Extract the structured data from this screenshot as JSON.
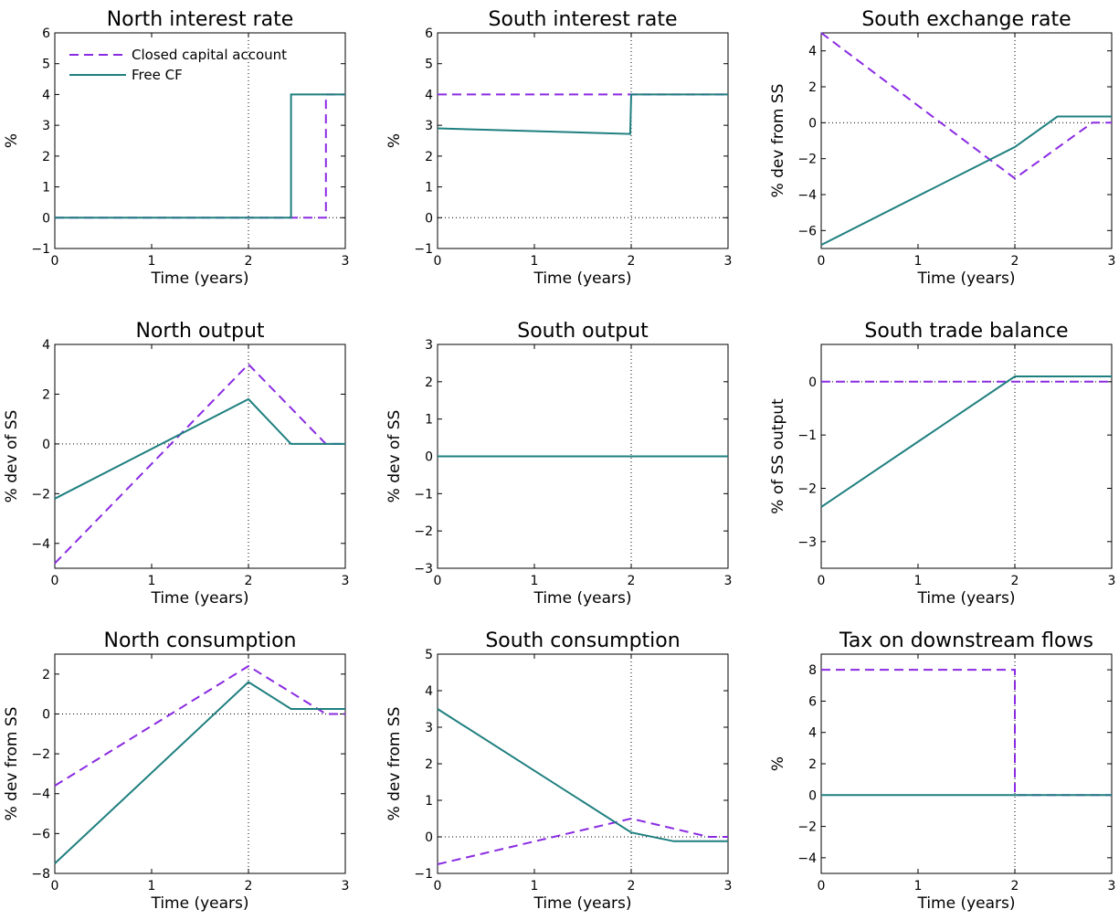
{
  "figure": {
    "legend": {
      "placement": "top-left",
      "entries": [
        "Closed capital account",
        "Free CF"
      ]
    },
    "colors": {
      "closed": "#8a2be2",
      "free": "#1f7f7f"
    }
  },
  "chart_data": [
    {
      "type": "line",
      "title": "North interest rate",
      "xlabel": "Time (years)",
      "ylabel": "%",
      "xlim": [
        0,
        3
      ],
      "ylim": [
        -1,
        6
      ],
      "xticks": [
        0,
        1,
        2,
        3
      ],
      "yticks": [
        -1,
        0,
        1,
        2,
        3,
        4,
        5,
        6
      ],
      "zero_line": true,
      "vline_x": 2,
      "legend": true,
      "series": [
        {
          "name": "Closed capital account",
          "style": "dashed",
          "x": [
            0,
            2.8,
            2.8,
            3
          ],
          "y": [
            0,
            0,
            4,
            4
          ]
        },
        {
          "name": "Free CF",
          "style": "solid",
          "x": [
            0,
            2.44,
            2.44,
            3
          ],
          "y": [
            0,
            0,
            4,
            4
          ]
        }
      ]
    },
    {
      "type": "line",
      "title": "South interest rate",
      "xlabel": "Time (years)",
      "ylabel": "%",
      "xlim": [
        0,
        3
      ],
      "ylim": [
        -1,
        6
      ],
      "xticks": [
        0,
        1,
        2,
        3
      ],
      "yticks": [
        -1,
        0,
        1,
        2,
        3,
        4,
        5,
        6
      ],
      "zero_line": true,
      "vline_x": 2,
      "series": [
        {
          "name": "Closed capital account",
          "style": "dashed",
          "x": [
            0,
            3
          ],
          "y": [
            4,
            4
          ]
        },
        {
          "name": "Free CF",
          "style": "solid",
          "x": [
            0,
            1.99,
            2.0,
            3
          ],
          "y": [
            2.9,
            2.72,
            4,
            4
          ]
        }
      ]
    },
    {
      "type": "line",
      "title": "South exchange rate",
      "xlabel": "Time (years)",
      "ylabel": "% dev from SS",
      "xlim": [
        0,
        3
      ],
      "ylim": [
        -7,
        5
      ],
      "xticks": [
        0,
        1,
        2,
        3
      ],
      "yticks": [
        -6,
        -4,
        -2,
        0,
        2,
        4
      ],
      "zero_line": true,
      "vline_x": 2,
      "series": [
        {
          "name": "Closed capital account",
          "style": "dashed",
          "x": [
            0,
            2,
            2.8,
            3
          ],
          "y": [
            5,
            -3.1,
            0,
            0
          ]
        },
        {
          "name": "Free CF",
          "style": "solid",
          "x": [
            0,
            2,
            2.44,
            3
          ],
          "y": [
            -6.8,
            -1.35,
            0.35,
            0.35
          ]
        }
      ]
    },
    {
      "type": "line",
      "title": "North output",
      "xlabel": "Time (years)",
      "ylabel": "% dev of SS",
      "xlim": [
        0,
        3
      ],
      "ylim": [
        -5,
        4
      ],
      "xticks": [
        0,
        1,
        2,
        3
      ],
      "yticks": [
        -4,
        -2,
        0,
        2,
        4
      ],
      "zero_line": true,
      "vline_x": 2,
      "series": [
        {
          "name": "Closed capital account",
          "style": "dashed",
          "x": [
            0,
            2,
            2.8,
            3
          ],
          "y": [
            -4.8,
            3.2,
            0,
            0
          ]
        },
        {
          "name": "Free CF",
          "style": "solid",
          "x": [
            0,
            2,
            2.44,
            3
          ],
          "y": [
            -2.2,
            1.8,
            0,
            0
          ]
        }
      ]
    },
    {
      "type": "line",
      "title": "South output",
      "xlabel": "Time (years)",
      "ylabel": "% dev of SS",
      "xlim": [
        0,
        3
      ],
      "ylim": [
        -3,
        3
      ],
      "xticks": [
        0,
        1,
        2,
        3
      ],
      "yticks": [
        -3,
        -2,
        -1,
        0,
        1,
        2,
        3
      ],
      "zero_line": true,
      "vline_x": 2,
      "series": [
        {
          "name": "Closed capital account",
          "style": "dashed",
          "x": [
            0,
            3
          ],
          "y": [
            0,
            0
          ]
        },
        {
          "name": "Free CF",
          "style": "solid",
          "x": [
            0,
            3
          ],
          "y": [
            0,
            0
          ]
        }
      ]
    },
    {
      "type": "line",
      "title": "South trade balance",
      "xlabel": "Time (years)",
      "ylabel": "% of SS output",
      "xlim": [
        0,
        3
      ],
      "ylim": [
        -3.5,
        0.7
      ],
      "xticks": [
        0,
        1,
        2,
        3
      ],
      "yticks": [
        -3,
        -2,
        -1,
        0
      ],
      "zero_line": true,
      "vline_x": 2,
      "series": [
        {
          "name": "Closed capital account",
          "style": "dashed",
          "x": [
            0,
            3
          ],
          "y": [
            0,
            0
          ]
        },
        {
          "name": "Free CF",
          "style": "solid",
          "x": [
            0,
            2,
            3
          ],
          "y": [
            -2.35,
            0.1,
            0.1
          ]
        }
      ]
    },
    {
      "type": "line",
      "title": "North consumption",
      "xlabel": "Time (years)",
      "ylabel": "% dev from SS",
      "xlim": [
        0,
        3
      ],
      "ylim": [
        -8,
        3
      ],
      "xticks": [
        0,
        1,
        2,
        3
      ],
      "yticks": [
        -8,
        -6,
        -4,
        -2,
        0,
        2
      ],
      "zero_line": true,
      "vline_x": 2,
      "series": [
        {
          "name": "Closed capital account",
          "style": "dashed",
          "x": [
            0,
            2,
            2.8,
            3
          ],
          "y": [
            -3.6,
            2.4,
            0,
            0
          ]
        },
        {
          "name": "Free CF",
          "style": "solid",
          "x": [
            0,
            2,
            2.44,
            3
          ],
          "y": [
            -7.5,
            1.6,
            0.25,
            0.25
          ]
        }
      ]
    },
    {
      "type": "line",
      "title": "South consumption",
      "xlabel": "Time (years)",
      "ylabel": "% dev from SS",
      "xlim": [
        0,
        3
      ],
      "ylim": [
        -1,
        5
      ],
      "xticks": [
        0,
        1,
        2,
        3
      ],
      "yticks": [
        -1,
        0,
        1,
        2,
        3,
        4,
        5
      ],
      "zero_line": true,
      "vline_x": 2,
      "series": [
        {
          "name": "Closed capital account",
          "style": "dashed",
          "x": [
            0,
            2,
            2.8,
            3
          ],
          "y": [
            -0.75,
            0.5,
            0,
            0
          ]
        },
        {
          "name": "Free CF",
          "style": "solid",
          "x": [
            0,
            2,
            2.44,
            3
          ],
          "y": [
            3.5,
            0.12,
            -0.12,
            -0.12
          ]
        }
      ]
    },
    {
      "type": "line",
      "title": "Tax on downstream flows",
      "xlabel": "Time (years)",
      "ylabel": "%",
      "xlim": [
        0,
        3
      ],
      "ylim": [
        -5,
        9
      ],
      "xticks": [
        0,
        1,
        2,
        3
      ],
      "yticks": [
        -4,
        -2,
        0,
        2,
        4,
        6,
        8
      ],
      "zero_line": false,
      "vline_x": 2,
      "series": [
        {
          "name": "Closed capital account",
          "style": "dashed",
          "x": [
            0,
            2,
            2,
            3
          ],
          "y": [
            8,
            8,
            0,
            0
          ]
        },
        {
          "name": "Free CF",
          "style": "solid",
          "x": [
            0,
            3
          ],
          "y": [
            0,
            0
          ]
        }
      ]
    }
  ]
}
